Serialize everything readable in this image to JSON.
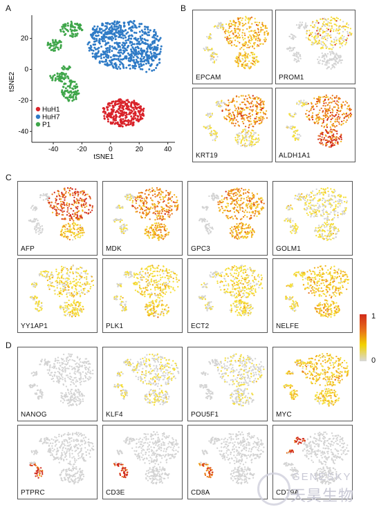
{
  "panels": {
    "a": "A",
    "b": "B",
    "c": "C",
    "d": "D"
  },
  "tsne": {
    "xlabel": "tSNE1",
    "ylabel": "tSNE2",
    "xticks": [
      "-40",
      "-20",
      "0",
      "20",
      "40"
    ],
    "yticks": [
      "20",
      "0",
      "-20",
      "-40"
    ],
    "legend": [
      {
        "name": "HuH1",
        "color": "#d9232a"
      },
      {
        "name": "HuH7",
        "color": "#2f7bc6"
      },
      {
        "name": "P1",
        "color": "#3fa64a"
      }
    ]
  },
  "genes_b": [
    "EPCAM",
    "PROM1",
    "KRT19",
    "ALDH1A1"
  ],
  "genes_c": [
    "AFP",
    "MDK",
    "GPC3",
    "GOLM1",
    "YY1AP1",
    "PLK1",
    "ECT2",
    "NELFE"
  ],
  "genes_d": [
    "NANOG",
    "KLF4",
    "POU5F1",
    "MYC",
    "PTPRC",
    "CD3E",
    "CD8A",
    "CD79A"
  ],
  "colorbar": {
    "max": "1",
    "min": "0",
    "colors": [
      "#d9d9d9",
      "#f2d200",
      "#e8731a",
      "#d12a1a"
    ]
  },
  "watermark": {
    "line1": "GENESKY",
    "line2": "天昊生物"
  },
  "chart_data": [
    {
      "type": "scatter",
      "title": "",
      "xlabel": "tSNE1",
      "ylabel": "tSNE2",
      "xlim": [
        -55,
        45
      ],
      "ylim": [
        -47,
        35
      ],
      "series": [
        {
          "name": "HuH1",
          "values": "cluster centered near (8,-28)"
        },
        {
          "name": "HuH7",
          "values": "cluster centered near (10,15)"
        },
        {
          "name": "P1",
          "values": "curved clusters near (-35,5) to (-25,28)"
        }
      ]
    }
  ]
}
